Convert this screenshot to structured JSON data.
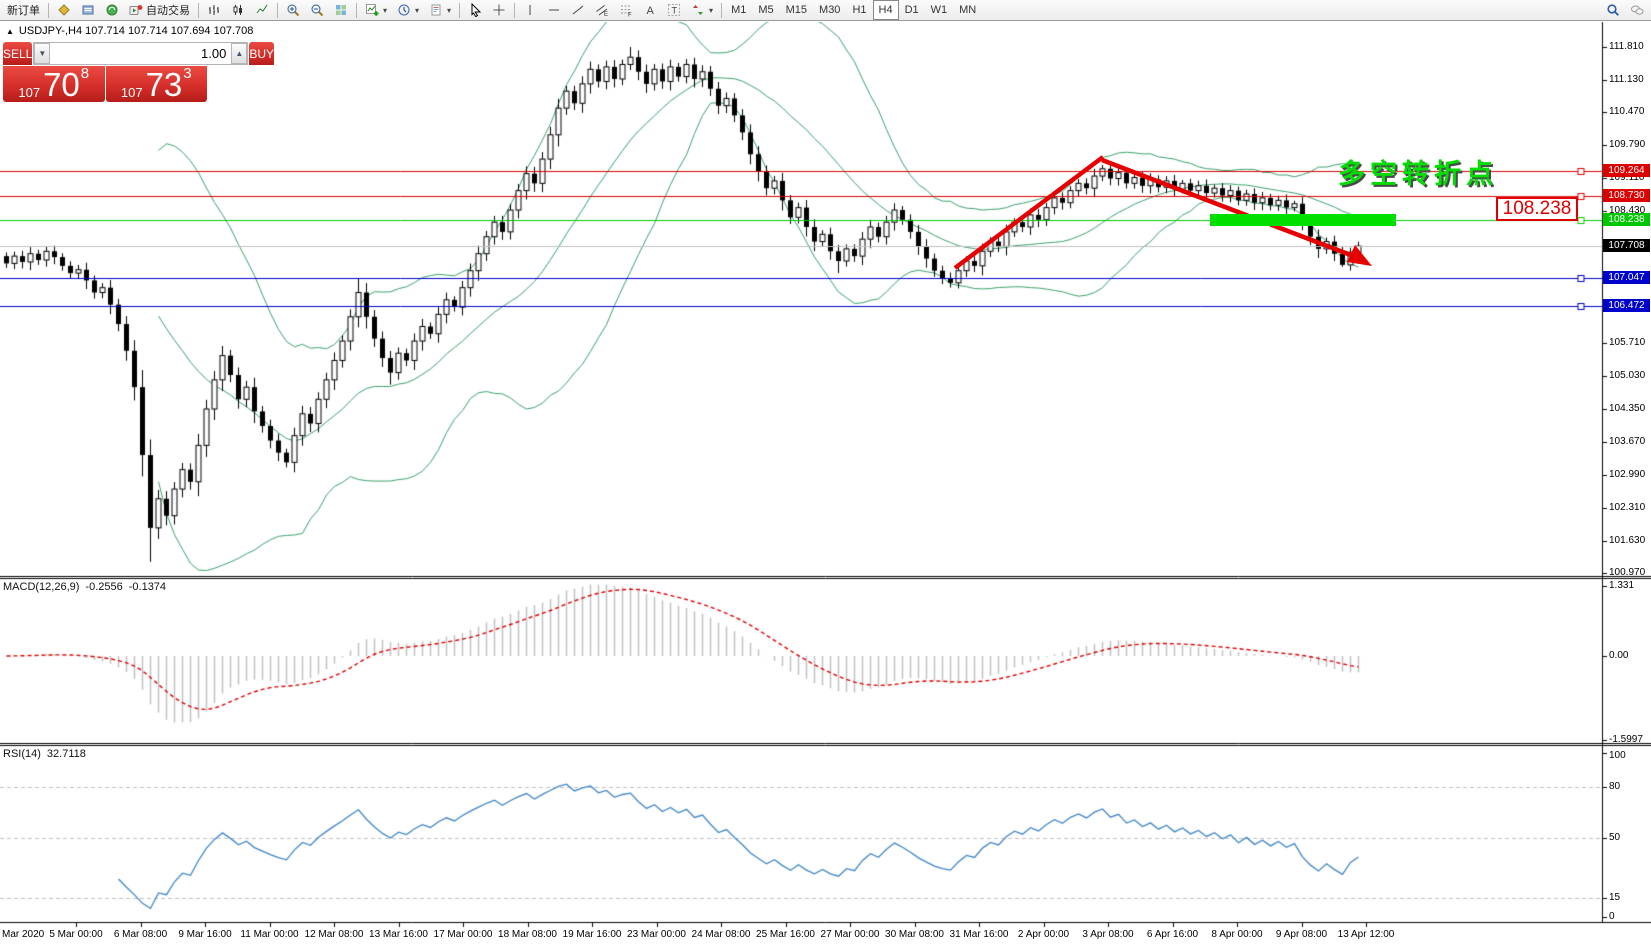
{
  "toolbar": {
    "new_order": "新订单",
    "autotrading": "自动交易",
    "timeframes": [
      "M1",
      "M5",
      "M15",
      "M30",
      "H1",
      "H4",
      "D1",
      "W1",
      "MN"
    ],
    "active_timeframe": "H4"
  },
  "symbol_bar": {
    "arrow": "▲",
    "text": "USDJPY-,H4 107.714 107.714 107.694 107.708"
  },
  "trade_panel": {
    "sell_label": "SELL",
    "buy_label": "BUY",
    "volume": "1.00",
    "sell_price": {
      "prefix": "107",
      "big": "70",
      "sup": "8"
    },
    "buy_price": {
      "prefix": "107",
      "big": "73",
      "sup": "3"
    }
  },
  "chart_data": {
    "type": "candlestick",
    "symbol": "USDJPY-",
    "timeframe": "H4",
    "last_quote": {
      "open": "107.714",
      "high": "107.714",
      "low": "107.694",
      "close": "107.708"
    },
    "closes": [
      107.35,
      107.5,
      107.38,
      107.55,
      107.42,
      107.6,
      107.48,
      107.3,
      107.15,
      107.22,
      107.0,
      106.75,
      106.85,
      106.5,
      106.1,
      105.55,
      104.8,
      103.4,
      101.9,
      102.5,
      102.15,
      102.7,
      103.1,
      102.85,
      103.6,
      104.35,
      104.95,
      105.45,
      105.05,
      104.55,
      104.8,
      104.3,
      104.0,
      103.7,
      103.45,
      103.25,
      103.8,
      104.25,
      104.05,
      104.55,
      104.95,
      105.35,
      105.75,
      106.25,
      106.75,
      106.25,
      105.8,
      105.4,
      105.1,
      105.5,
      105.35,
      105.75,
      106.05,
      105.9,
      106.3,
      106.6,
      106.45,
      106.85,
      107.2,
      107.55,
      107.9,
      108.2,
      108.0,
      108.45,
      108.85,
      109.2,
      109.0,
      109.5,
      110.0,
      110.55,
      110.9,
      110.65,
      111.05,
      111.35,
      111.1,
      111.4,
      111.15,
      111.45,
      111.6,
      111.3,
      111.05,
      111.35,
      111.1,
      111.4,
      111.2,
      111.45,
      111.15,
      111.3,
      110.95,
      110.6,
      110.75,
      110.4,
      110.05,
      109.6,
      109.25,
      108.9,
      109.05,
      108.65,
      108.3,
      108.5,
      108.1,
      107.8,
      107.95,
      107.6,
      107.4,
      107.65,
      107.5,
      107.85,
      108.1,
      107.9,
      108.2,
      108.45,
      108.25,
      108.0,
      107.7,
      107.45,
      107.2,
      107.05,
      106.95,
      107.2,
      107.4,
      107.3,
      107.6,
      107.8,
      107.7,
      108.0,
      108.2,
      108.1,
      108.35,
      108.25,
      108.5,
      108.7,
      108.6,
      108.85,
      109.0,
      108.9,
      109.15,
      109.3,
      109.1,
      109.22,
      109.0,
      109.12,
      108.95,
      109.08,
      108.92,
      109.05,
      108.88,
      109.0,
      108.85,
      108.95,
      108.8,
      108.9,
      108.75,
      108.85,
      108.65,
      108.78,
      108.6,
      108.7,
      108.55,
      108.65,
      108.5,
      108.58,
      108.2,
      107.9,
      107.65,
      107.8,
      107.55,
      107.32,
      107.58,
      107.708
    ],
    "high_overrides": {
      "27": 105.65,
      "44": 107.05,
      "78": 111.81,
      "137": 109.38
    },
    "low_overrides": {
      "18": 101.2,
      "48": 104.85,
      "104": 107.15,
      "118": 106.85,
      "167": 107.28
    },
    "y_ticks": [
      "111.810",
      "111.130",
      "110.470",
      "109.790",
      "109.110",
      "108.430",
      "106.390",
      "105.710",
      "105.030",
      "104.350",
      "103.670",
      "102.990",
      "102.310",
      "101.630",
      "100.970"
    ],
    "x_labels": [
      "Mar 2020",
      "5 Mar 00:00",
      "6 Mar 08:00",
      "9 Mar 16:00",
      "11 Mar 00:00",
      "12 Mar 08:00",
      "13 Mar 16:00",
      "17 Mar 00:00",
      "18 Mar 08:00",
      "19 Mar 16:00",
      "23 Mar 00:00",
      "24 Mar 08:00",
      "25 Mar 16:00",
      "27 Mar 00:00",
      "30 Mar 08:00",
      "31 Mar 16:00",
      "2 Apr 00:00",
      "3 Apr 08:00",
      "6 Apr 16:00",
      "8 Apr 00:00",
      "9 Apr 08:00",
      "13 Apr 12:00"
    ],
    "levels": [
      {
        "price": "109.264",
        "color": "#dd0000"
      },
      {
        "price": "108.730",
        "color": "#dd0000"
      },
      {
        "price": "108.238",
        "color": "#00c800"
      },
      {
        "price": "107.047",
        "color": "#0000cc"
      },
      {
        "price": "106.472",
        "color": "#0000cc"
      }
    ],
    "bid": {
      "price": "107.708",
      "line_color": "#c0c0c0",
      "label_bg": "#000000"
    },
    "bollinger": {
      "period": 20,
      "deviation": 2,
      "color": "#3aa06a"
    },
    "macd": {
      "label": "MACD(12,26,9)",
      "value_main": "-0.2556",
      "value_signal": "-0.1374",
      "axis_ticks": [
        "1.331",
        "0.00",
        "-1.5997"
      ],
      "fast": 12,
      "slow": 26,
      "signal": 9,
      "histogram_color": "#c0c0c0",
      "signal_color": "#e00000"
    },
    "rsi": {
      "label": "RSI(14)",
      "value": "32.7118",
      "period": 14,
      "axis_ticks": [
        "100",
        "80",
        "50",
        "15",
        "0"
      ],
      "level_lines": [
        80,
        50,
        15
      ],
      "line_color": "#3f86c8"
    }
  },
  "annotations": {
    "turning_point_text": "多空转折点",
    "price_label": "108.238",
    "arrow_color": "#e60000",
    "zone_color": "#00e000"
  }
}
